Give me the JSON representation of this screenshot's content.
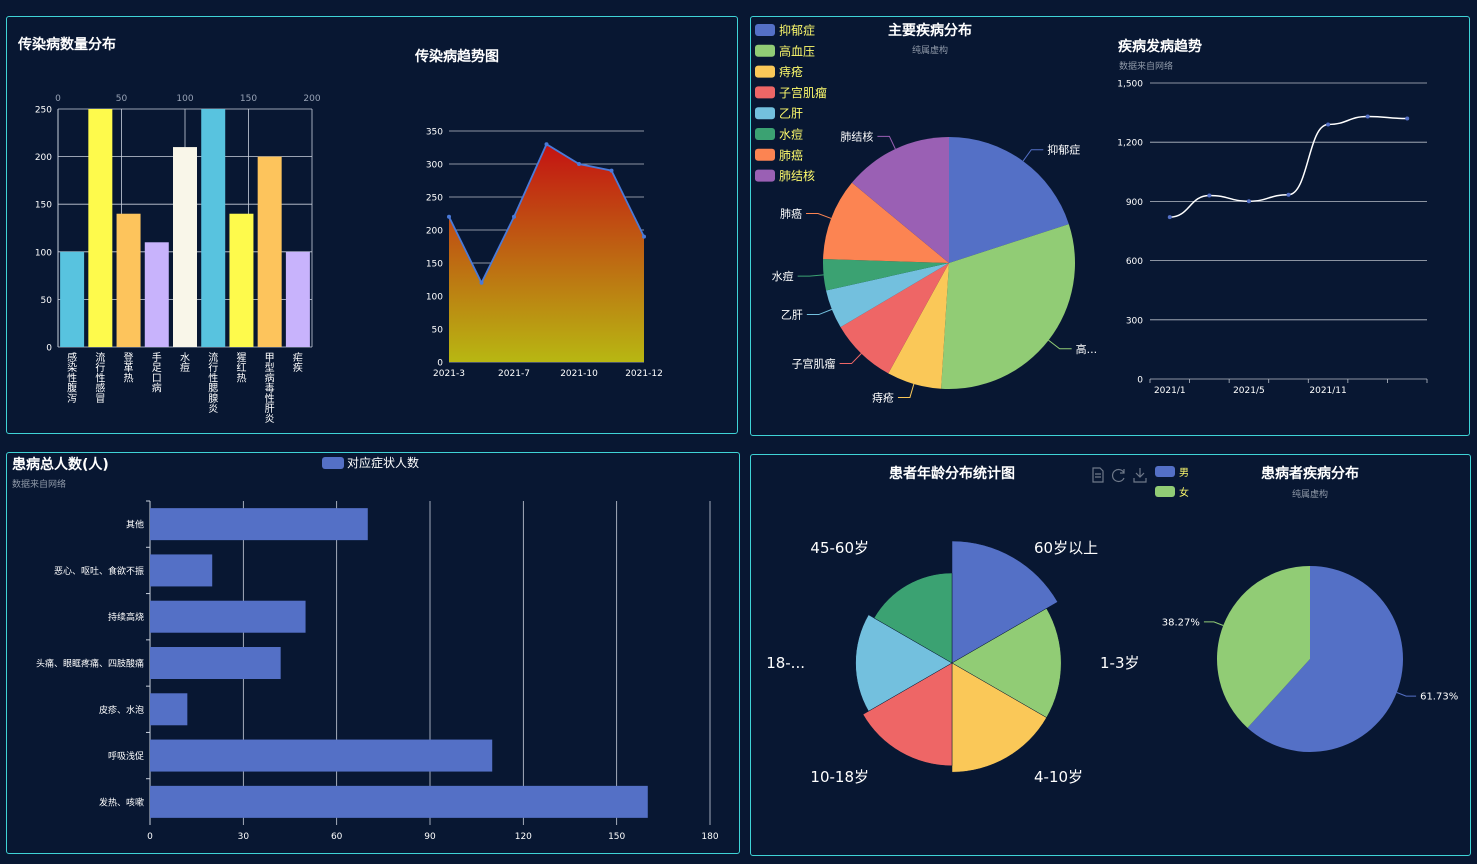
{
  "colors": {
    "background": "#081732",
    "panel_border": "#3fd3d6",
    "palette": [
      "#5470c6",
      "#91cc75",
      "#fac858",
      "#ee6666",
      "#73c0de",
      "#3ba272",
      "#fc8452",
      "#9a60b4"
    ],
    "bar_palette": [
      "#58c3df",
      "#fefa4c",
      "#fdc45c",
      "#c8b3fc",
      "#f9f6e9"
    ]
  },
  "chart_data": [
    {
      "id": "infectious_bar",
      "type": "bar",
      "title": "传染病数量分布",
      "categories": [
        "感染性腹泻",
        "流行性感冒",
        "登革热",
        "手足口病",
        "水痘",
        "流行性腮腺炎",
        "猩红热",
        "甲型病毒性肝炎",
        "疟疾"
      ],
      "values": [
        100,
        250,
        140,
        110,
        210,
        250,
        140,
        200,
        100
      ],
      "bar_colors": [
        "#58c3df",
        "#fefa4c",
        "#fdc45c",
        "#c8b3fc",
        "#f9f6e9",
        "#58c3df",
        "#fefa4c",
        "#fdc45c",
        "#c8b3fc"
      ],
      "y_ticks": [
        "0",
        "50",
        "100",
        "150",
        "200",
        "250"
      ],
      "top_ticks": [
        "0",
        "50",
        "100",
        "150",
        "200"
      ],
      "ylim": [
        0,
        250
      ],
      "grid": true
    },
    {
      "id": "infectious_trend",
      "type": "area",
      "title": "传染病趋势图",
      "x_tick_labels": [
        "2021-3",
        "2021-7",
        "2021-10",
        "2021-12"
      ],
      "values": [
        220,
        120,
        220,
        330,
        300,
        290,
        190
      ],
      "y_ticks": [
        "0",
        "50",
        "100",
        "150",
        "200",
        "250",
        "300",
        "350"
      ],
      "ylim": [
        0,
        350
      ],
      "grid": true,
      "gradient": [
        "#c41212",
        "#b8b712"
      ]
    },
    {
      "id": "main_disease_pie",
      "type": "pie",
      "title": "主要疾病分布",
      "subtitle": "纯属虚构",
      "legend_position": "top-left",
      "slices": [
        {
          "name": "抑郁症",
          "value": 20,
          "label": "抑郁症"
        },
        {
          "name": "高血压",
          "value": 31,
          "label": "高..."
        },
        {
          "name": "痔疮",
          "value": 7,
          "label": "痔疮"
        },
        {
          "name": "子宫肌瘤",
          "value": 8.5,
          "label": "子宫肌瘤"
        },
        {
          "name": "乙肝",
          "value": 5,
          "label": "乙肝"
        },
        {
          "name": "水痘",
          "value": 4,
          "label": "水痘"
        },
        {
          "name": "肺癌",
          "value": 10.5,
          "label": "肺癌"
        },
        {
          "name": "肺结核",
          "value": 14,
          "label": "肺结核"
        }
      ]
    },
    {
      "id": "disease_trend",
      "type": "line",
      "title": "疾病发病趋势",
      "subtitle": "数据来自网络",
      "values": [
        820,
        930,
        901,
        934,
        1290,
        1330,
        1320
      ],
      "x_tick_labels": [
        "2021/1",
        "2021/5",
        "2021/11"
      ],
      "y_ticks": [
        "0",
        "300",
        "600",
        "900",
        "1,200",
        "1,500"
      ],
      "ylim": [
        0,
        1500
      ],
      "smooth": true,
      "grid": true
    },
    {
      "id": "patients_bar",
      "type": "bar",
      "orientation": "horizontal",
      "title": "患病总人数(人)",
      "subtitle": "数据来自网络",
      "legend": "对应症状人数",
      "categories": [
        "其他",
        "恶心、呕吐、食欲不振",
        "持续高烧",
        "头痛、眼眶疼痛、四肢酸痛",
        "皮疹、水泡",
        "呼吸浅促",
        "发热、咳嗽"
      ],
      "values": [
        70,
        20,
        50,
        42,
        12,
        110,
        160
      ],
      "x_ticks": [
        "0",
        "30",
        "60",
        "90",
        "120",
        "150",
        "180"
      ],
      "xlim": [
        0,
        180
      ],
      "grid": true
    },
    {
      "id": "age_rose",
      "type": "pie",
      "rose": true,
      "title": "患者年龄分布统计图",
      "slices": [
        {
          "name": "60岁以上",
          "value": 110
        },
        {
          "name": "1-3岁",
          "value": 100
        },
        {
          "name": "4-10岁",
          "value": 100
        },
        {
          "name": "10-18岁",
          "value": 95
        },
        {
          "name": "18-...",
          "value": 90
        },
        {
          "name": "45-60岁",
          "value": 85
        }
      ]
    },
    {
      "id": "gender_pie",
      "type": "pie",
      "title": "患病者疾病分布",
      "subtitle": "纯属虚构",
      "legend": [
        "男",
        "女"
      ],
      "slices": [
        {
          "name": "男",
          "value": 61.73,
          "label": "61.73%"
        },
        {
          "name": "女",
          "value": 38.27,
          "label": "38.27%"
        }
      ]
    }
  ],
  "toolbox": [
    "file-icon",
    "refresh-icon",
    "download-icon"
  ]
}
